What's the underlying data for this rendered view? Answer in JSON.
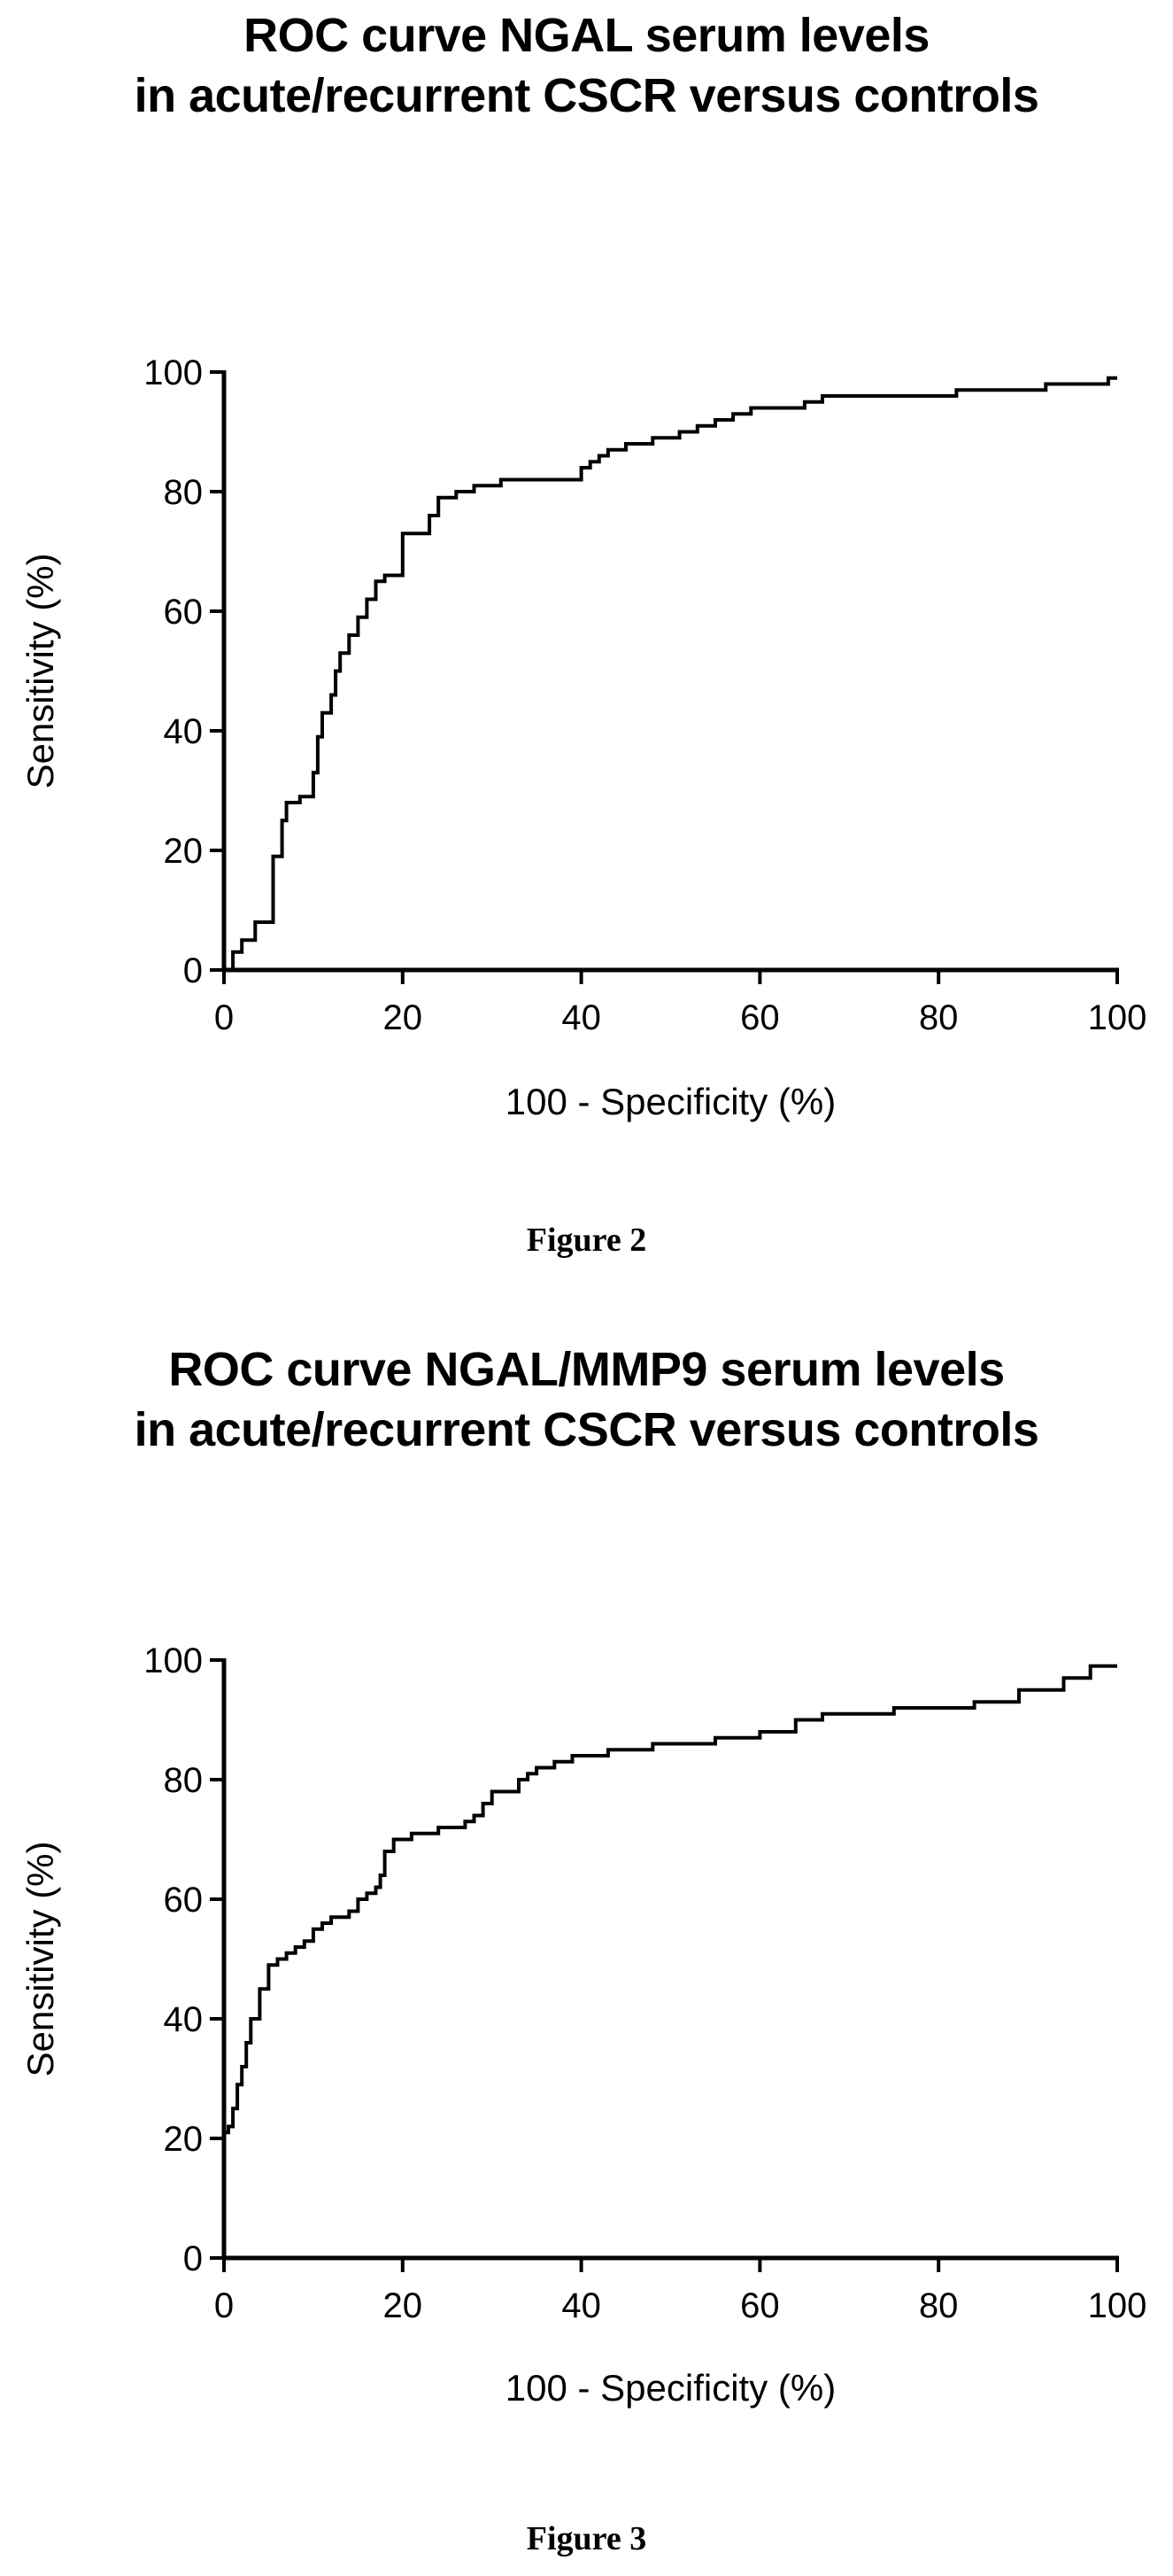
{
  "chart_data": [
    {
      "type": "line",
      "figure_caption": "Figure 2",
      "title": [
        "ROC curve NGAL serum levels",
        "in acute/recurrent CSCR versus controls"
      ],
      "xlabel": "100 - Specificity (%)",
      "ylabel": "Sensitivity (%)",
      "xlim": [
        0,
        100
      ],
      "ylim": [
        0,
        100
      ],
      "xticks": [
        "0",
        "20",
        "40",
        "60",
        "80",
        "100"
      ],
      "yticks": [
        "0",
        "20",
        "40",
        "60",
        "80",
        "100"
      ],
      "grid": false,
      "line_color": "#000000",
      "series": [
        {
          "x": [
            0,
            1,
            1,
            2,
            2,
            3.5,
            3.5,
            5.5,
            5.5,
            6.5,
            6.5,
            7,
            7,
            8.5,
            8.5,
            10,
            10,
            10.5,
            10.5,
            11,
            11,
            12,
            12,
            12.5,
            12.5,
            13,
            13,
            14,
            14,
            15,
            15,
            16,
            16,
            17,
            17,
            18,
            18,
            20,
            20,
            23,
            23,
            24,
            24,
            26,
            26,
            28,
            28,
            31,
            31,
            40,
            40,
            41,
            41,
            42,
            42,
            43,
            43,
            45,
            45,
            48,
            48,
            51,
            51,
            53,
            53,
            55,
            55,
            57,
            57,
            59,
            59,
            65,
            65,
            67,
            67,
            82,
            82,
            92,
            92,
            99,
            99,
            100
          ],
          "y": [
            0,
            0,
            3,
            3,
            5,
            5,
            8,
            8,
            19,
            19,
            25,
            25,
            28,
            28,
            29,
            29,
            33,
            33,
            39,
            39,
            43,
            43,
            46,
            46,
            50,
            50,
            53,
            53,
            56,
            56,
            59,
            59,
            62,
            62,
            65,
            65,
            66,
            66,
            73,
            73,
            76,
            76,
            79,
            79,
            80,
            80,
            81,
            81,
            82,
            82,
            84,
            84,
            85,
            85,
            86,
            86,
            87,
            87,
            88,
            88,
            89,
            89,
            90,
            90,
            91,
            91,
            92,
            92,
            93,
            93,
            94,
            94,
            95,
            95,
            96,
            96,
            97,
            97,
            98,
            98,
            99,
            99
          ]
        }
      ]
    },
    {
      "type": "line",
      "figure_caption": "Figure 3",
      "title": [
        "ROC curve NGAL/MMP9 serum levels",
        "in acute/recurrent CSCR versus controls"
      ],
      "xlabel": "100 - Specificity (%)",
      "ylabel": "Sensitivity (%)",
      "xlim": [
        0,
        100
      ],
      "ylim": [
        0,
        100
      ],
      "xticks": [
        "0",
        "20",
        "40",
        "60",
        "80",
        "100"
      ],
      "yticks": [
        "0",
        "20",
        "40",
        "60",
        "80",
        "100"
      ],
      "grid": false,
      "line_color": "#000000",
      "series": [
        {
          "x": [
            0,
            0,
            0.5,
            0.5,
            1,
            1,
            1.5,
            1.5,
            2,
            2,
            2.5,
            2.5,
            3,
            3,
            4,
            4,
            5,
            5,
            6,
            6,
            7,
            7,
            8,
            8,
            9,
            9,
            10,
            10,
            11,
            11,
            12,
            12,
            14,
            14,
            15,
            15,
            16,
            16,
            17,
            17,
            17.5,
            17.5,
            18,
            18,
            19,
            19,
            21,
            21,
            24,
            24,
            27,
            27,
            28,
            28,
            29,
            29,
            30,
            30,
            33,
            33,
            34,
            34,
            35,
            35,
            37,
            37,
            39,
            39,
            43,
            43,
            48,
            48,
            55,
            55,
            60,
            60,
            64,
            64,
            67,
            67,
            75,
            75,
            84,
            84,
            89,
            89,
            94,
            94,
            97,
            97,
            100
          ],
          "y": [
            0,
            21,
            21,
            22,
            22,
            25,
            25,
            29,
            29,
            32,
            32,
            36,
            36,
            40,
            40,
            45,
            45,
            49,
            49,
            50,
            50,
            51,
            51,
            52,
            52,
            53,
            53,
            55,
            55,
            56,
            56,
            57,
            57,
            58,
            58,
            60,
            60,
            61,
            61,
            62,
            62,
            64,
            64,
            68,
            68,
            70,
            70,
            71,
            71,
            72,
            72,
            73,
            73,
            74,
            74,
            76,
            76,
            78,
            78,
            80,
            80,
            81,
            81,
            82,
            82,
            83,
            83,
            84,
            84,
            85,
            85,
            86,
            86,
            87,
            87,
            88,
            88,
            90,
            90,
            91,
            91,
            92,
            92,
            93,
            93,
            95,
            95,
            97,
            97,
            99,
            99
          ]
        }
      ]
    }
  ]
}
